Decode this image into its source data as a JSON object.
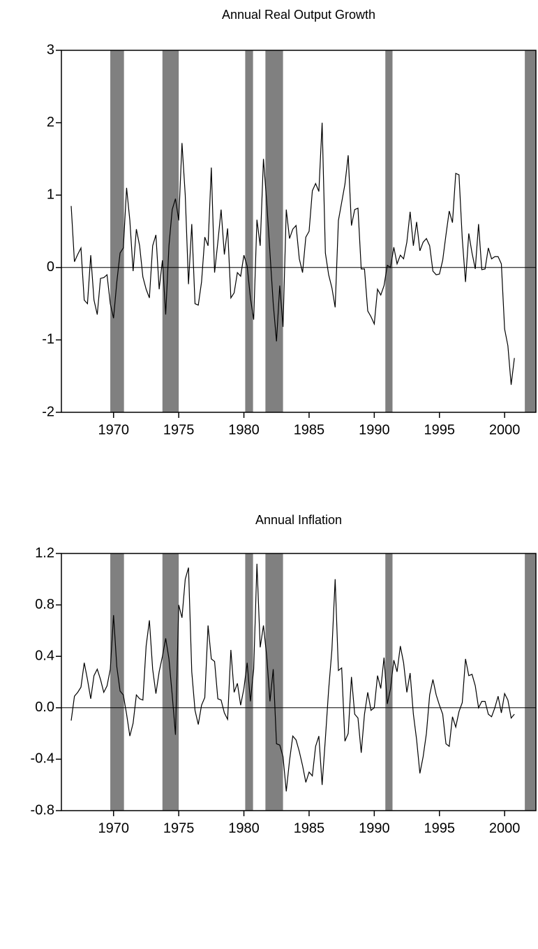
{
  "chart_data": [
    {
      "type": "line",
      "title": "Annual Real Output Growth",
      "x": [
        1966.75,
        1967,
        1967.25,
        1967.5,
        1967.75,
        1968,
        1968.25,
        1968.5,
        1968.75,
        1969,
        1969.25,
        1969.5,
        1969.75,
        1970,
        1970.25,
        1970.5,
        1970.75,
        1971,
        1971.25,
        1971.5,
        1971.75,
        1972,
        1972.25,
        1972.5,
        1972.75,
        1973,
        1973.25,
        1973.5,
        1973.75,
        1974,
        1974.25,
        1974.5,
        1974.75,
        1975,
        1975.25,
        1975.5,
        1975.75,
        1976,
        1976.25,
        1976.5,
        1976.75,
        1977,
        1977.25,
        1977.5,
        1977.75,
        1978,
        1978.25,
        1978.5,
        1978.75,
        1979,
        1979.25,
        1979.5,
        1979.75,
        1980,
        1980.25,
        1980.5,
        1980.75,
        1981,
        1981.25,
        1981.5,
        1981.75,
        1982,
        1982.25,
        1982.5,
        1982.75,
        1983,
        1983.25,
        1983.5,
        1983.75,
        1984,
        1984.25,
        1984.5,
        1984.75,
        1985,
        1985.25,
        1985.5,
        1985.75,
        1986,
        1986.25,
        1986.5,
        1986.75,
        1987,
        1987.25,
        1987.5,
        1987.75,
        1988,
        1988.25,
        1988.5,
        1988.75,
        1989,
        1989.25,
        1989.5,
        1989.75,
        1990,
        1990.25,
        1990.5,
        1990.75,
        1991,
        1991.25,
        1991.5,
        1991.75,
        1992,
        1992.25,
        1992.5,
        1992.75,
        1993,
        1993.25,
        1993.5,
        1993.75,
        1994,
        1994.25,
        1994.5,
        1994.75,
        1995,
        1995.25,
        1995.5,
        1995.75,
        1996,
        1996.25,
        1996.5,
        1996.75,
        1997,
        1997.25,
        1997.5,
        1997.75,
        1998,
        1998.25,
        1998.5,
        1998.75,
        1999,
        1999.25,
        1999.5,
        1999.75,
        2000,
        2000.25,
        2000.5,
        2000.75
      ],
      "series": [
        {
          "color": "#000000",
          "values": [
            0.85,
            0.08,
            0.18,
            0.27,
            -0.45,
            -0.5,
            0.17,
            -0.45,
            -0.65,
            -0.15,
            -0.14,
            -0.1,
            -0.5,
            -0.7,
            -0.2,
            0.2,
            0.27,
            1.1,
            0.65,
            -0.05,
            0.53,
            0.3,
            -0.13,
            -0.3,
            -0.42,
            0.3,
            0.45,
            -0.3,
            0.1,
            -0.65,
            0.3,
            0.8,
            0.95,
            0.65,
            1.72,
            1.0,
            -0.23,
            0.6,
            -0.5,
            -0.52,
            -0.2,
            0.42,
            0.3,
            1.38,
            -0.07,
            0.35,
            0.8,
            0.18,
            0.54,
            -0.42,
            -0.35,
            -0.07,
            -0.12,
            0.17,
            0.02,
            -0.42,
            -0.72,
            0.66,
            0.3,
            1.5,
            0.9,
            0.2,
            -0.5,
            -1.02,
            -0.25,
            -0.82,
            0.8,
            0.4,
            0.53,
            0.58,
            0.12,
            -0.07,
            0.42,
            0.5,
            1.06,
            1.16,
            1.05,
            2.0,
            0.2,
            -0.1,
            -0.28,
            -0.55,
            0.65,
            0.9,
            1.15,
            1.55,
            0.58,
            0.8,
            0.82,
            -0.02,
            -0.02,
            -0.6,
            -0.68,
            -0.78,
            -0.3,
            -0.38,
            -0.25,
            0.03,
            0.0,
            0.28,
            0.05,
            0.17,
            0.12,
            0.35,
            0.77,
            0.3,
            0.63,
            0.23,
            0.35,
            0.4,
            0.3,
            -0.05,
            -0.1,
            -0.09,
            0.1,
            0.45,
            0.78,
            0.62,
            1.3,
            1.28,
            0.4,
            -0.2,
            0.47,
            0.2,
            -0.02,
            0.6,
            -0.03,
            -0.02,
            0.27,
            0.12,
            0.15,
            0.15,
            0.05,
            -0.85,
            -1.08,
            -1.62,
            -1.25
          ]
        }
      ],
      "xlim": [
        1966,
        2002.4
      ],
      "xticks": [
        1970,
        1975,
        1980,
        1985,
        1990,
        1995,
        2000
      ],
      "ylim": [
        -2,
        3
      ],
      "yticks": [
        -2,
        -1,
        0,
        1,
        2,
        3
      ],
      "hline": 0,
      "shaded_regions": [
        [
          1969.75,
          1970.8
        ],
        [
          1973.75,
          1975.0
        ],
        [
          1980.1,
          1980.7
        ],
        [
          1981.65,
          1983.0
        ],
        [
          1990.85,
          1991.4
        ],
        [
          2001.55,
          2002.4
        ]
      ],
      "shade_color": "#808080"
    },
    {
      "type": "line",
      "title": "Annual Inflation",
      "x": [
        1966.75,
        1967,
        1967.25,
        1967.5,
        1967.75,
        1968,
        1968.25,
        1968.5,
        1968.75,
        1969,
        1969.25,
        1969.5,
        1969.75,
        1970,
        1970.25,
        1970.5,
        1970.75,
        1971,
        1971.25,
        1971.5,
        1971.75,
        1972,
        1972.25,
        1972.5,
        1972.75,
        1973,
        1973.25,
        1973.5,
        1973.75,
        1974,
        1974.25,
        1974.5,
        1974.75,
        1975,
        1975.25,
        1975.5,
        1975.75,
        1976,
        1976.25,
        1976.5,
        1976.75,
        1977,
        1977.25,
        1977.5,
        1977.75,
        1978,
        1978.25,
        1978.5,
        1978.75,
        1979,
        1979.25,
        1979.5,
        1979.75,
        1980,
        1980.25,
        1980.5,
        1980.75,
        1981,
        1981.25,
        1981.5,
        1981.75,
        1982,
        1982.25,
        1982.5,
        1982.75,
        1983,
        1983.25,
        1983.5,
        1983.75,
        1984,
        1984.25,
        1984.5,
        1984.75,
        1985,
        1985.25,
        1985.5,
        1985.75,
        1986,
        1986.25,
        1986.5,
        1986.75,
        1987,
        1987.25,
        1987.5,
        1987.75,
        1988,
        1988.25,
        1988.5,
        1988.75,
        1989,
        1989.25,
        1989.5,
        1989.75,
        1990,
        1990.25,
        1990.5,
        1990.75,
        1991,
        1991.25,
        1991.5,
        1991.75,
        1992,
        1992.25,
        1992.5,
        1992.75,
        1993,
        1993.25,
        1993.5,
        1993.75,
        1994,
        1994.25,
        1994.5,
        1994.75,
        1995,
        1995.25,
        1995.5,
        1995.75,
        1996,
        1996.25,
        1996.5,
        1996.75,
        1997,
        1997.25,
        1997.5,
        1997.75,
        1998,
        1998.25,
        1998.5,
        1998.75,
        1999,
        1999.25,
        1999.5,
        1999.75,
        2000,
        2000.25,
        2000.5,
        2000.75
      ],
      "series": [
        {
          "color": "#000000",
          "values": [
            -0.1,
            0.09,
            0.12,
            0.16,
            0.35,
            0.22,
            0.07,
            0.25,
            0.3,
            0.22,
            0.12,
            0.17,
            0.3,
            0.72,
            0.32,
            0.13,
            0.1,
            -0.05,
            -0.22,
            -0.12,
            0.1,
            0.07,
            0.06,
            0.48,
            0.68,
            0.3,
            0.11,
            0.28,
            0.4,
            0.54,
            0.38,
            0.1,
            -0.21,
            0.8,
            0.7,
            1.0,
            1.09,
            0.28,
            -0.02,
            -0.13,
            0.02,
            0.08,
            0.64,
            0.38,
            0.36,
            0.07,
            0.06,
            -0.04,
            -0.09,
            0.45,
            0.12,
            0.19,
            0.02,
            0.15,
            0.35,
            0.05,
            0.3,
            1.12,
            0.47,
            0.64,
            0.4,
            0.05,
            0.3,
            -0.28,
            -0.29,
            -0.38,
            -0.65,
            -0.41,
            -0.22,
            -0.25,
            -0.34,
            -0.45,
            -0.58,
            -0.5,
            -0.53,
            -0.3,
            -0.22,
            -0.6,
            -0.24,
            0.14,
            0.45,
            1.0,
            0.29,
            0.31,
            -0.26,
            -0.2,
            0.24,
            -0.05,
            -0.08,
            -0.35,
            -0.05,
            0.12,
            -0.02,
            0.0,
            0.25,
            0.15,
            0.39,
            0.03,
            0.15,
            0.37,
            0.28,
            0.48,
            0.35,
            0.12,
            0.27,
            -0.05,
            -0.25,
            -0.51,
            -0.38,
            -0.2,
            0.1,
            0.22,
            0.1,
            0.02,
            -0.05,
            -0.28,
            -0.3,
            -0.07,
            -0.15,
            -0.03,
            0.04,
            0.38,
            0.25,
            0.26,
            0.17,
            0.0,
            0.05,
            0.05,
            -0.05,
            -0.07,
            0.0,
            0.09,
            -0.04,
            0.11,
            0.06,
            -0.08,
            -0.05
          ]
        }
      ],
      "xlim": [
        1966,
        2002.4
      ],
      "xticks": [
        1970,
        1975,
        1980,
        1985,
        1990,
        1995,
        2000
      ],
      "ylim": [
        -0.8,
        1.2
      ],
      "yticks": [
        -0.8,
        -0.4,
        {
          "value": 0,
          "label": "0.0"
        },
        0.4,
        0.8,
        1.2
      ],
      "hline": 0,
      "shaded_regions": [
        [
          1969.75,
          1970.8
        ],
        [
          1973.75,
          1975.0
        ],
        [
          1980.1,
          1980.7
        ],
        [
          1981.65,
          1983.0
        ],
        [
          1990.85,
          1991.4
        ],
        [
          2001.55,
          2002.4
        ]
      ],
      "shade_color": "#808080"
    }
  ]
}
